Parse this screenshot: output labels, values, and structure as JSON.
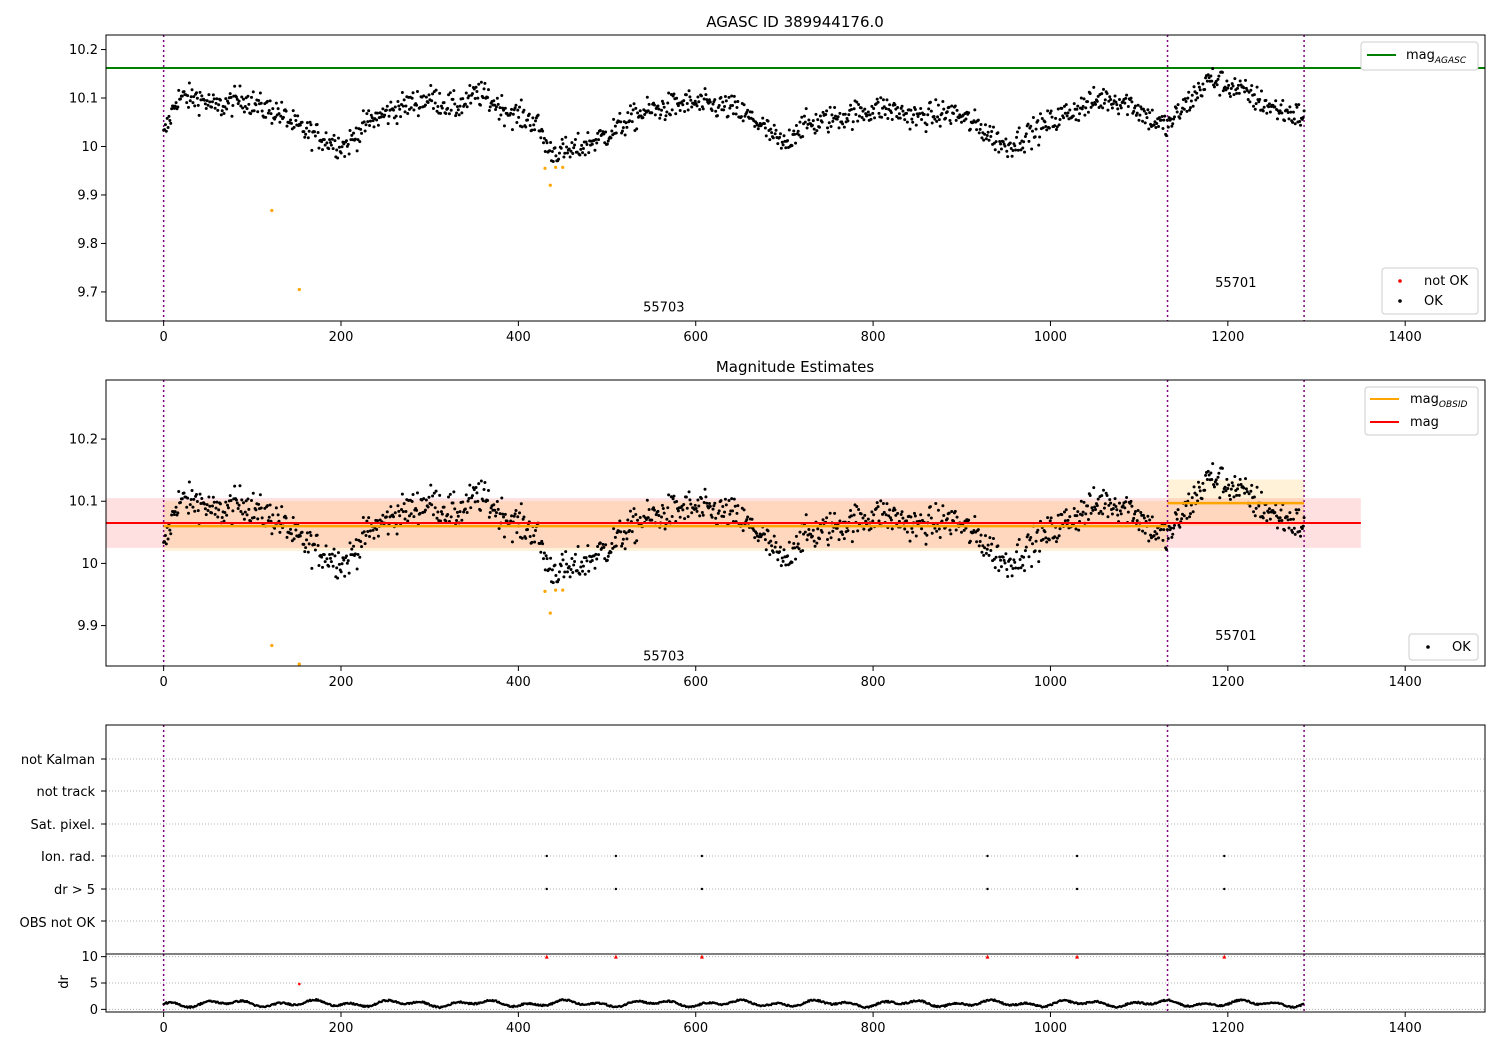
{
  "chart_data": [
    {
      "type": "scatter",
      "title": "AGASC ID 389944176.0",
      "xlabel": "",
      "ylabel": "",
      "xlim": [
        -65,
        1490
      ],
      "ylim": [
        9.64,
        10.23
      ],
      "xticks": [
        0,
        200,
        400,
        600,
        800,
        1000,
        1200,
        1400
      ],
      "yticks": [
        9.7,
        9.8,
        9.9,
        10.0,
        10.1,
        10.2
      ],
      "grid": false,
      "legend_upper": {
        "position": "top-right",
        "entries": [
          {
            "label": "mag",
            "sub": "AGASC",
            "color": "#008000"
          }
        ]
      },
      "legend_lower": {
        "position": "bottom-right",
        "entries": [
          {
            "label": "not OK",
            "color": "#ff0000"
          },
          {
            "label": "OK",
            "color": "#000000"
          }
        ]
      },
      "obs_boundaries": [
        0,
        1132,
        1286
      ],
      "obs_labels": [
        {
          "text": "55703",
          "x": 564,
          "y": 9.67
        },
        {
          "text": "55701",
          "x": 1209,
          "y": 9.72
        }
      ],
      "mag_agasc": 10.162,
      "trend": [
        [
          0,
          10.02
        ],
        [
          15,
          10.1
        ],
        [
          40,
          10.1
        ],
        [
          60,
          10.08
        ],
        [
          90,
          10.1
        ],
        [
          110,
          10.08
        ],
        [
          130,
          10.07
        ],
        [
          150,
          10.04
        ],
        [
          175,
          10.02
        ],
        [
          205,
          10.0
        ],
        [
          230,
          10.05
        ],
        [
          265,
          10.08
        ],
        [
          300,
          10.1
        ],
        [
          330,
          10.08
        ],
        [
          355,
          10.11
        ],
        [
          390,
          10.07
        ],
        [
          420,
          10.05
        ],
        [
          435,
          9.99
        ],
        [
          460,
          9.99
        ],
        [
          495,
          10.02
        ],
        [
          540,
          10.07
        ],
        [
          590,
          10.09
        ],
        [
          640,
          10.08
        ],
        [
          670,
          10.05
        ],
        [
          700,
          10.0
        ],
        [
          715,
          10.04
        ],
        [
          760,
          10.06
        ],
        [
          810,
          10.08
        ],
        [
          850,
          10.06
        ],
        [
          890,
          10.07
        ],
        [
          920,
          10.04
        ],
        [
          950,
          10.0
        ],
        [
          990,
          10.04
        ],
        [
          1020,
          10.07
        ],
        [
          1060,
          10.1
        ],
        [
          1090,
          10.09
        ],
        [
          1110,
          10.06
        ],
        [
          1131,
          10.04
        ],
        [
          1140,
          10.06
        ],
        [
          1180,
          10.14
        ],
        [
          1210,
          10.12
        ],
        [
          1250,
          10.08
        ],
        [
          1286,
          10.06
        ]
      ],
      "not_ok_points": [
        [
          122,
          9.868
        ],
        [
          153,
          9.705
        ],
        [
          430,
          9.955
        ],
        [
          436,
          9.92
        ],
        [
          442,
          9.957
        ],
        [
          450,
          9.957
        ]
      ],
      "ok_series": {
        "name": "OK",
        "n_points": 1286,
        "x_range": [
          0,
          1286
        ],
        "scatter": 0.027
      }
    },
    {
      "type": "scatter",
      "title": "Magnitude Estimates",
      "xlabel": "",
      "ylabel": "",
      "xlim": [
        -65,
        1490
      ],
      "ylim": [
        9.835,
        10.295
      ],
      "xticks": [
        0,
        200,
        400,
        600,
        800,
        1000,
        1200,
        1400
      ],
      "yticks": [
        9.9,
        10.0,
        10.1,
        10.2
      ],
      "grid": false,
      "legend_upper": {
        "position": "top-right",
        "entries": [
          {
            "label": "mag",
            "sub": "OBSID",
            "color": "#ffa500"
          },
          {
            "label": "mag",
            "color": "#ff0000"
          }
        ]
      },
      "legend_lower": {
        "position": "bottom-right",
        "entries": [
          {
            "label": "OK",
            "color": "#000000"
          }
        ]
      },
      "obs_boundaries": [
        0,
        1132,
        1286
      ],
      "obs_labels": [
        {
          "text": "55703",
          "x": 564,
          "y": 9.852
        },
        {
          "text": "55701",
          "x": 1209,
          "y": 9.885
        }
      ],
      "mag": {
        "value": 10.065,
        "low": 10.025,
        "high": 10.105,
        "x_range": [
          -65,
          1350
        ],
        "color": "#ff0000"
      },
      "mag_obsid": [
        {
          "x_range": [
            0,
            1132
          ],
          "value": 10.06,
          "low": 10.02,
          "high": 10.1
        },
        {
          "x_range": [
            1132,
            1286
          ],
          "value": 10.097,
          "low": 10.06,
          "high": 10.135
        }
      ],
      "not_ok_points": [
        [
          122,
          9.868
        ],
        [
          153,
          9.838
        ],
        [
          430,
          9.955
        ],
        [
          436,
          9.92
        ],
        [
          442,
          9.957
        ],
        [
          450,
          9.957
        ]
      ]
    },
    {
      "type": "scatter",
      "title": "",
      "xlabel": "",
      "ylabel": "",
      "xlim": [
        -65,
        1490
      ],
      "xticks": [
        0,
        200,
        400,
        600,
        800,
        1000,
        1200,
        1400
      ],
      "grid": true,
      "flag_rows": [
        "not Kalman",
        "not track",
        "Sat. pixel.",
        "Ion. rad.",
        "dr > 5",
        "OBS not OK"
      ],
      "flag_points": {
        "Ion. rad.": [
          432,
          510,
          607,
          929,
          1030,
          1196
        ],
        "dr > 5": [
          432,
          510,
          607,
          929,
          1030,
          1196
        ]
      },
      "obs_boundaries": [
        0,
        1132,
        1286
      ]
    },
    {
      "type": "scatter",
      "title": "",
      "xlabel": "",
      "ylabel": "dr",
      "xlim": [
        -65,
        1490
      ],
      "ylim": [
        -0.5,
        10.5
      ],
      "yticks": [
        0,
        5,
        10
      ],
      "xticks": [
        0,
        200,
        400,
        600,
        800,
        1000,
        1200,
        1400
      ],
      "grid": true,
      "clipped_points": [
        432,
        510,
        607,
        929,
        1030,
        1196
      ],
      "clipped_value": 10,
      "outliers": [
        [
          153,
          4.8
        ]
      ],
      "obs_boundaries": [
        0,
        1132,
        1286
      ]
    }
  ]
}
